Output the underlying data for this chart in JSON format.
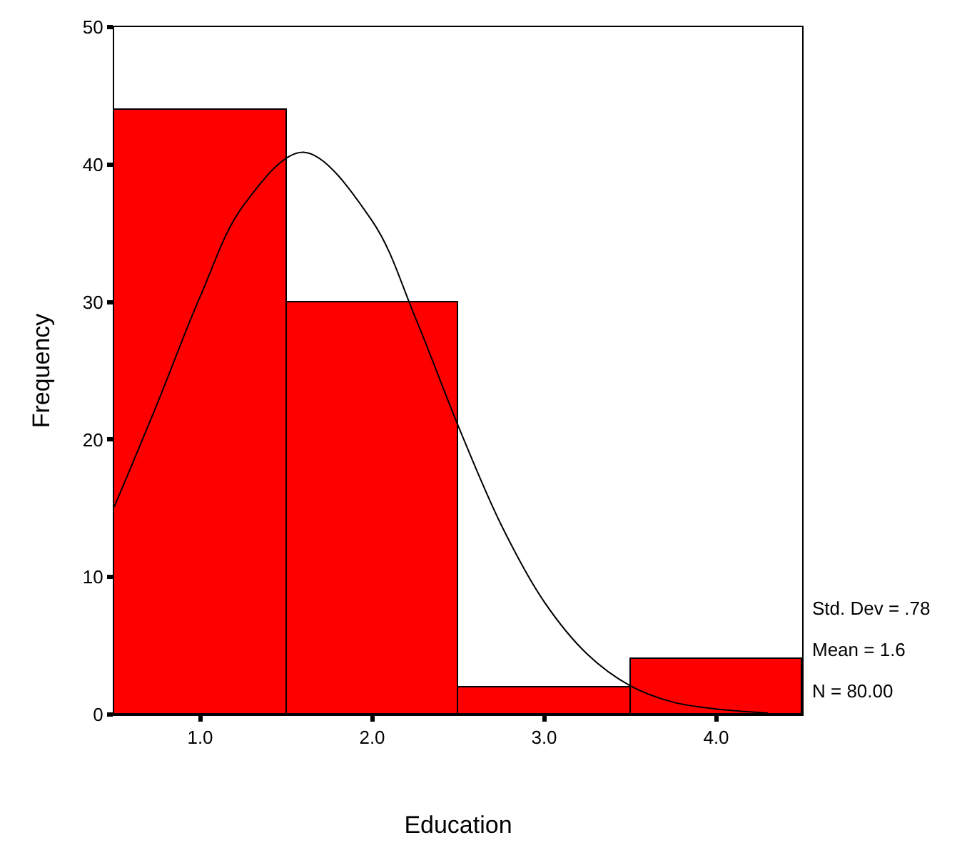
{
  "chart_data": {
    "type": "histogram",
    "xlabel": "Education",
    "ylabel": "Frequency",
    "bins": [
      0.5,
      1.5,
      2.5,
      3.5,
      4.5
    ],
    "values": [
      44,
      30,
      2,
      4
    ],
    "color": "#ff0000",
    "series": [
      {
        "type": "line",
        "color": "#000000",
        "x": [
          0.5,
          0.75,
          1.0,
          1.25,
          1.6,
          2.0,
          2.25,
          2.5,
          2.75,
          3.0,
          3.25,
          3.5,
          3.75,
          4.0,
          4.3
        ],
        "values": [
          15.1,
          22.6,
          30.4,
          37.0,
          40.9,
          35.9,
          28.9,
          21.0,
          13.8,
          8.2,
          4.4,
          2.1,
          0.9,
          0.4,
          0.1
        ]
      }
    ],
    "xlim": [
      0.5,
      4.5
    ],
    "xticks": [
      {
        "value": 1,
        "label": "1.0"
      },
      {
        "value": 2,
        "label": "2.0"
      },
      {
        "value": 3,
        "label": "3.0"
      },
      {
        "value": 4,
        "label": "4.0"
      }
    ],
    "ylim": [
      0,
      50
    ],
    "yticks": [
      0,
      10,
      20,
      30,
      40,
      50
    ],
    "annotations": [
      "Std. Dev = .78",
      "Mean = 1.6",
      "N = 80.00"
    ]
  }
}
